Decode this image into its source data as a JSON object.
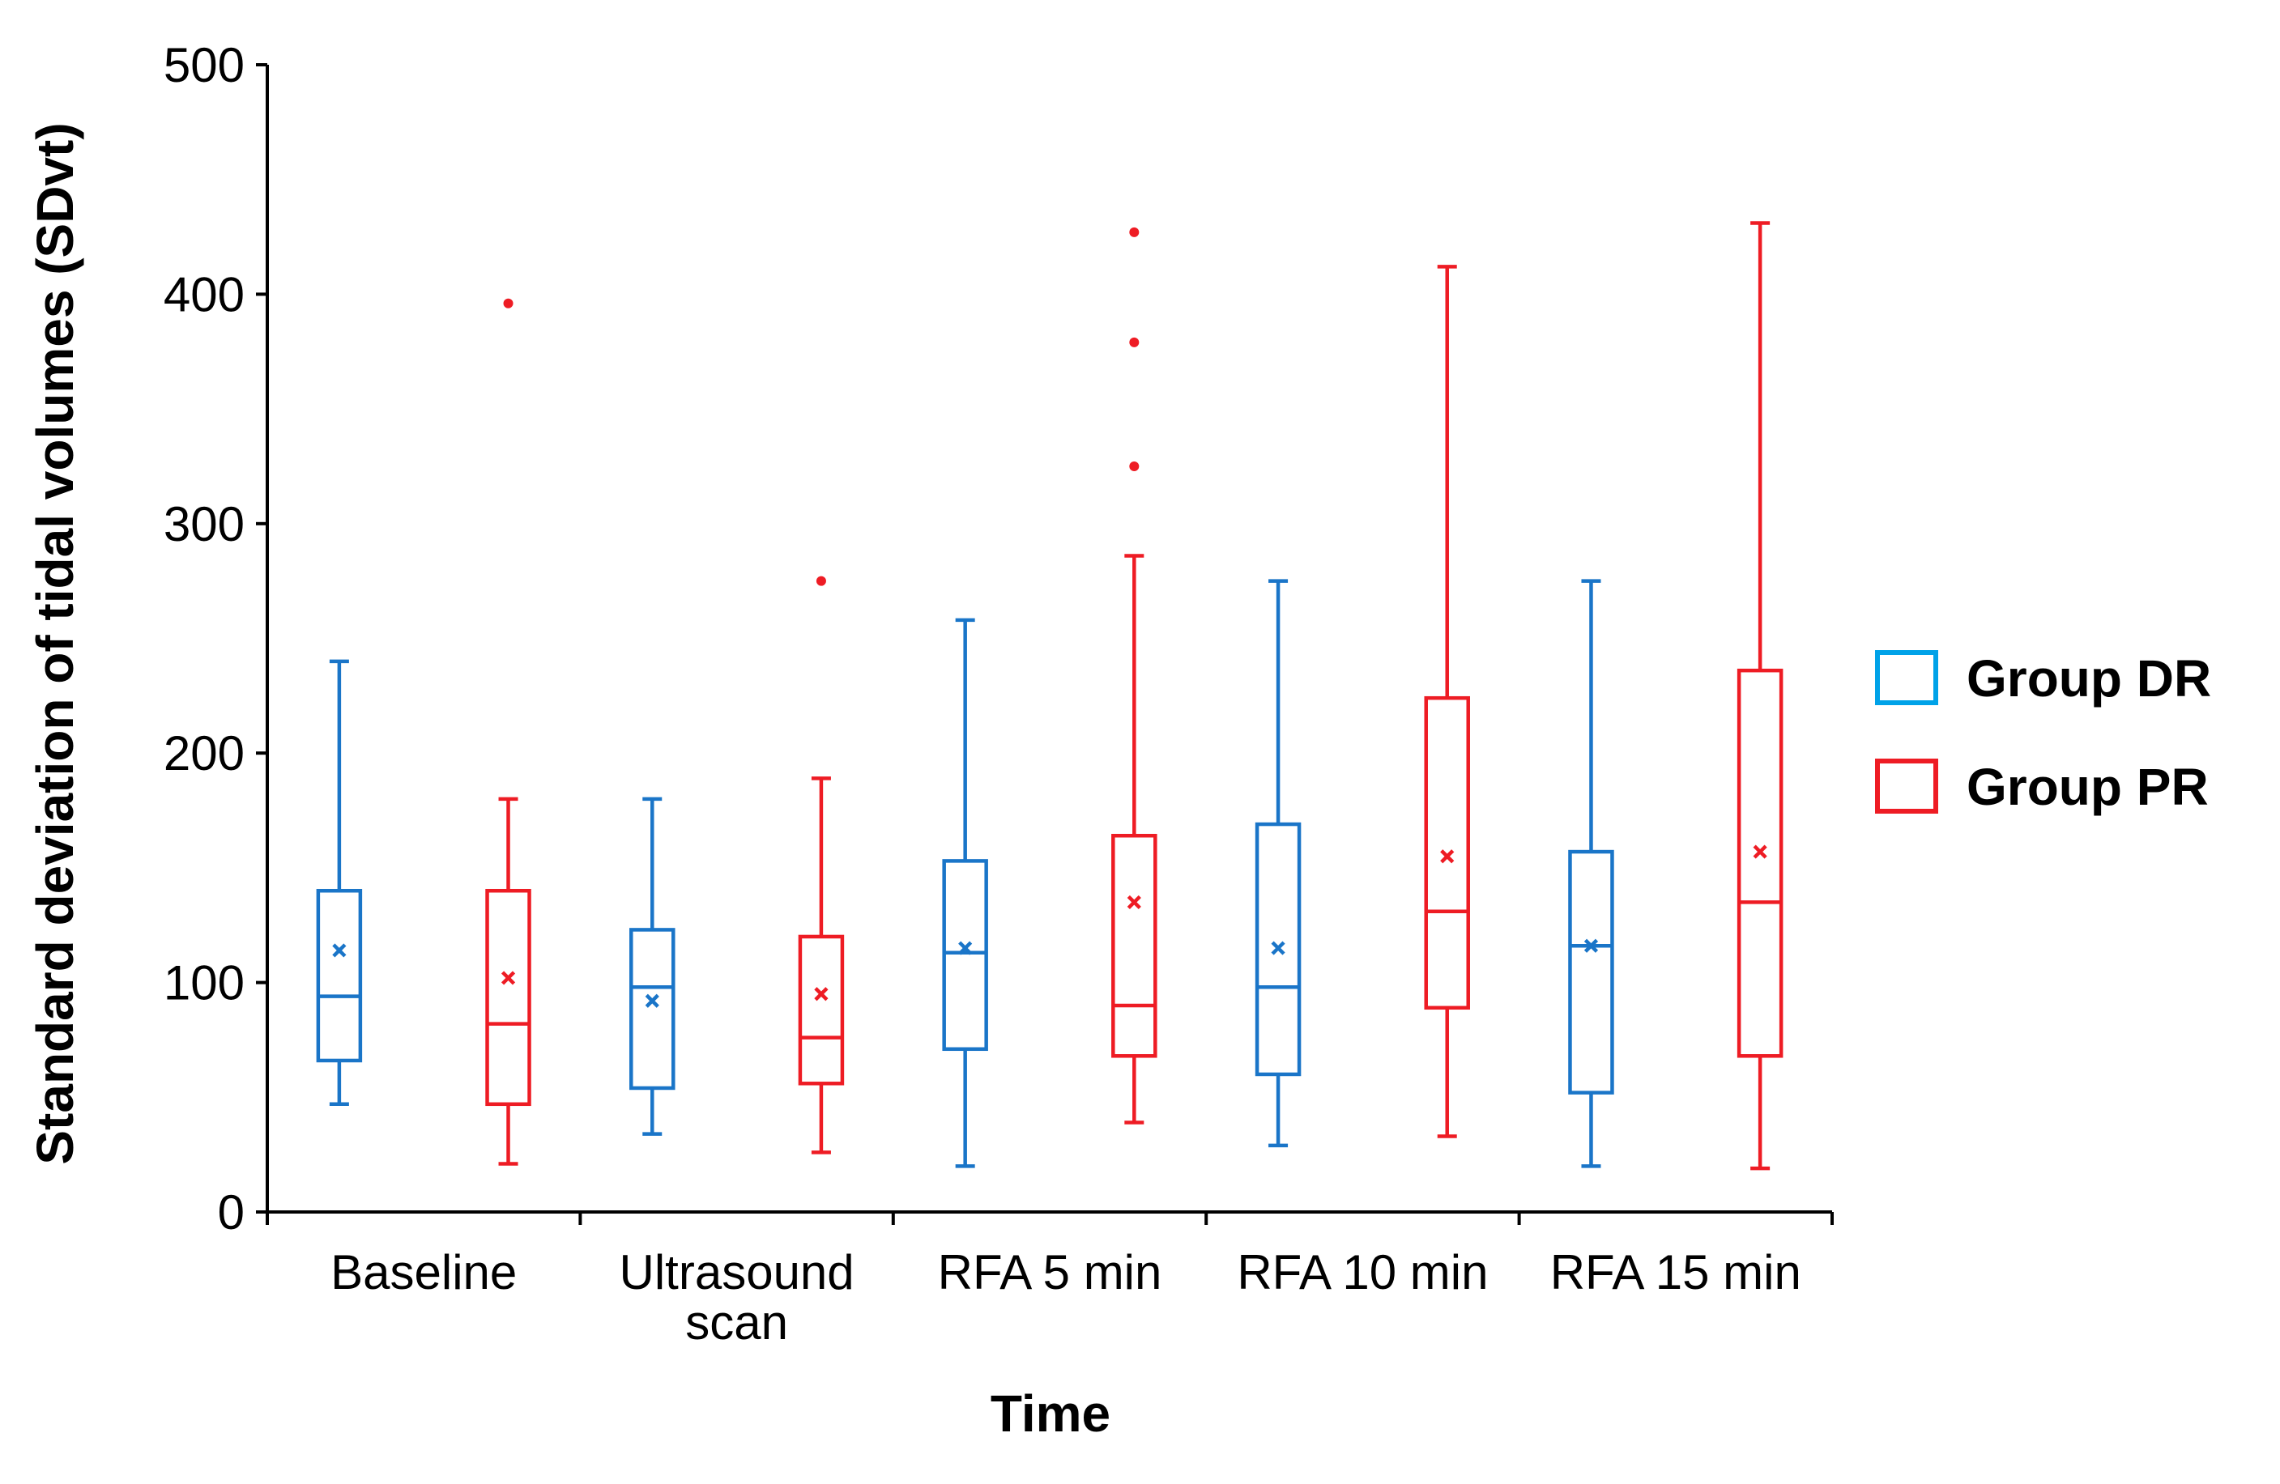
{
  "chart_data": {
    "type": "boxplot",
    "title": "",
    "xlabel": "Time",
    "ylabel": "Standard deviation of tidal volumes (SDvt)",
    "ylim": [
      0,
      500
    ],
    "yticks": [
      0,
      100,
      200,
      300,
      400,
      500
    ],
    "grid": false,
    "legend_position": "right",
    "categories": [
      {
        "lines": [
          "Baseline"
        ]
      },
      {
        "lines": [
          "Ultrasound",
          "scan"
        ]
      },
      {
        "lines": [
          "RFA 5 min"
        ]
      },
      {
        "lines": [
          "RFA 10 min"
        ]
      },
      {
        "lines": [
          "RFA 15 min"
        ]
      }
    ],
    "series": [
      {
        "name": "Group DR",
        "color": "#1a75c8",
        "legend_color": "#00a2e8",
        "boxes": [
          {
            "min": 47,
            "q1": 66,
            "median": 94,
            "q3": 140,
            "max": 240,
            "mean": 114,
            "outliers": []
          },
          {
            "min": 34,
            "q1": 54,
            "median": 98,
            "q3": 123,
            "max": 180,
            "mean": 92,
            "outliers": []
          },
          {
            "min": 20,
            "q1": 71,
            "median": 113,
            "q3": 153,
            "max": 258,
            "mean": 115,
            "outliers": []
          },
          {
            "min": 29,
            "q1": 60,
            "median": 98,
            "q3": 169,
            "max": 275,
            "mean": 115,
            "outliers": []
          },
          {
            "min": 20,
            "q1": 52,
            "median": 116,
            "q3": 157,
            "max": 275,
            "mean": 116,
            "outliers": []
          }
        ]
      },
      {
        "name": "Group PR",
        "color": "#ee1c24",
        "legend_color": "#ee1c24",
        "boxes": [
          {
            "min": 21,
            "q1": 47,
            "median": 82,
            "q3": 140,
            "max": 180,
            "mean": 102,
            "outliers": [
              396
            ]
          },
          {
            "min": 26,
            "q1": 56,
            "median": 76,
            "q3": 120,
            "max": 189,
            "mean": 95,
            "outliers": [
              275
            ]
          },
          {
            "min": 39,
            "q1": 68,
            "median": 90,
            "q3": 164,
            "max": 286,
            "mean": 135,
            "outliers": [
              325,
              379,
              427
            ]
          },
          {
            "min": 33,
            "q1": 89,
            "median": 131,
            "q3": 224,
            "max": 412,
            "mean": 155,
            "outliers": []
          },
          {
            "min": 19,
            "q1": 68,
            "median": 135,
            "q3": 236,
            "max": 431,
            "mean": 157,
            "outliers": []
          }
        ]
      }
    ]
  }
}
